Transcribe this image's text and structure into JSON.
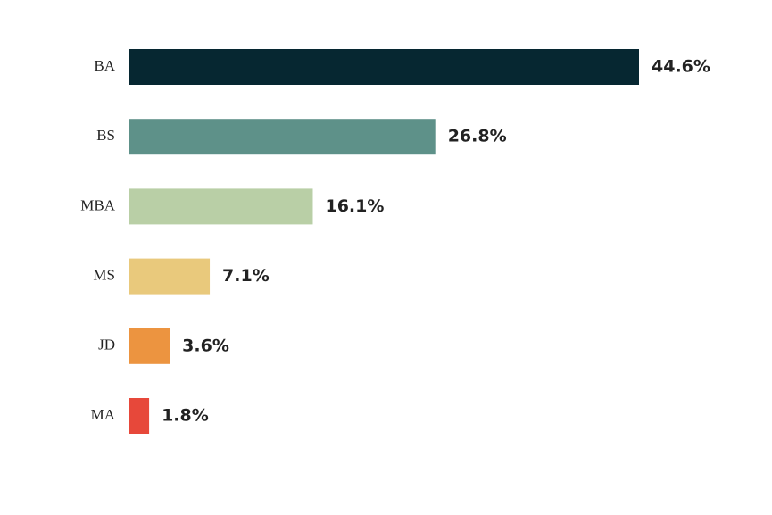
{
  "chart_data": {
    "type": "bar",
    "orientation": "horizontal",
    "categories": [
      "BA",
      "BS",
      "MBA",
      "MS",
      "JD",
      "MA"
    ],
    "values": [
      44.6,
      26.8,
      16.1,
      7.1,
      3.6,
      1.8
    ],
    "value_labels": [
      "44.6%",
      "26.8%",
      "16.1%",
      "7.1%",
      "3.6%",
      "1.8%"
    ],
    "colors": [
      "#062731",
      "#5e9189",
      "#b9cfa6",
      "#e9c97c",
      "#ec9440",
      "#e7483a"
    ]
  }
}
